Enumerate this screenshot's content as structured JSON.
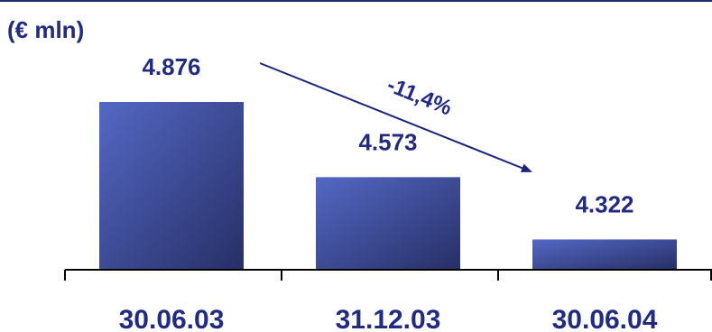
{
  "chart_data": {
    "type": "bar",
    "unit_label": "(€ mln)",
    "categories": [
      "30.06.03",
      "31.12.03",
      "30.06.04"
    ],
    "values": [
      4876,
      4573,
      4322
    ],
    "value_labels": [
      "4.876",
      "4.573",
      "4.322"
    ],
    "annotation": "-11,4%",
    "title": "",
    "xlabel": "",
    "ylabel": "",
    "grid": false,
    "legend": "none"
  },
  "colors": {
    "bar_light": "#5468c4",
    "bar_dark": "#272f66",
    "text": "#232b7f",
    "arrow": "#1a2378",
    "axis": "#000000",
    "top_rule": "#1f2a6b"
  }
}
